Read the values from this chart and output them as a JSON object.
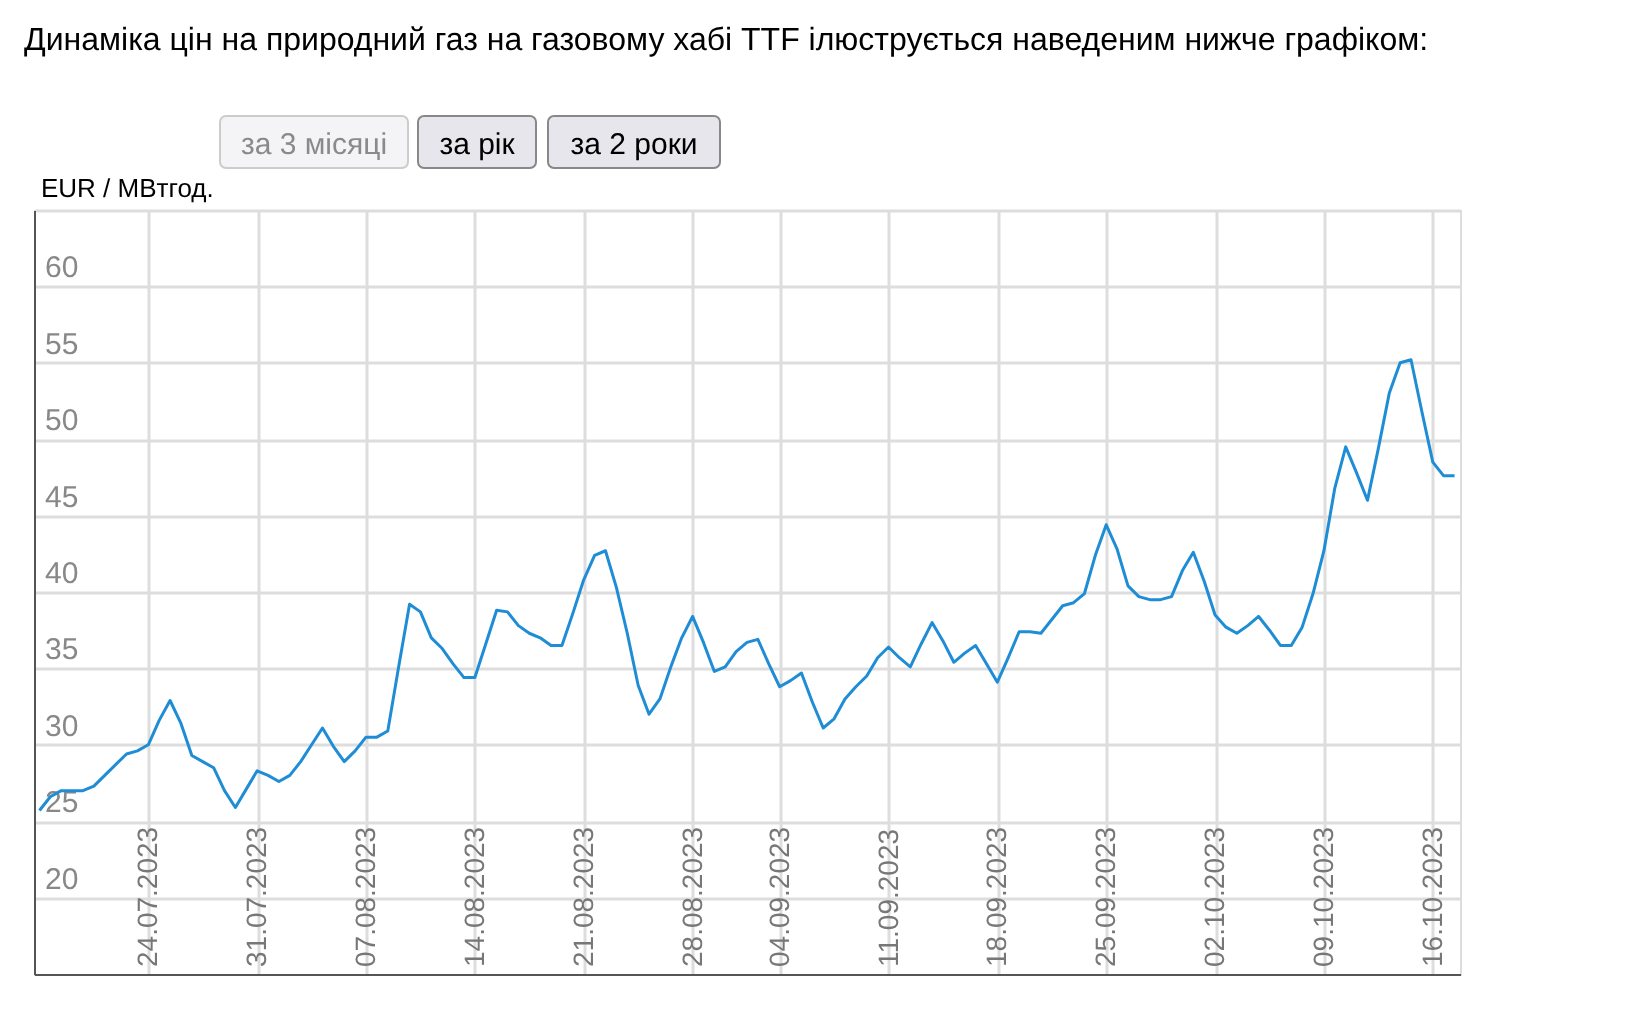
{
  "chart_data": {
    "type": "line",
    "title": "Динаміка цін на природний газ на газовому хабі TTF ілюструється наведеним нижче графіком:",
    "annotations": [
      "за 3 місяці",
      "за рік",
      "за 2 роки"
    ],
    "ylabel": "EUR / MBтгод.",
    "categories": [
      null,
      null,
      null,
      null,
      null,
      null,
      null,
      null,
      null,
      null,
      "24.07.2023",
      null,
      null,
      null,
      null,
      null,
      null,
      null,
      null,
      null,
      "31.07.2023",
      null,
      null,
      null,
      null,
      null,
      null,
      null,
      null,
      null,
      "07.08.2023",
      null,
      null,
      null,
      null,
      null,
      null,
      null,
      null,
      null,
      "14.08.2023",
      null,
      null,
      null,
      null,
      null,
      null,
      null,
      null,
      null,
      "21.08.2023",
      null,
      null,
      null,
      null,
      null,
      null,
      null,
      null,
      null,
      "28.08.2023",
      null,
      null,
      null,
      null,
      null,
      null,
      null,
      "04.09.2023",
      null,
      null,
      null,
      null,
      null,
      null,
      null,
      null,
      null,
      "11.09.2023",
      null,
      null,
      null,
      null,
      null,
      null,
      null,
      null,
      null,
      "18.09.2023",
      null,
      null,
      null,
      null,
      null,
      null,
      null,
      null,
      null,
      "25.09.2023",
      null,
      null,
      null,
      null,
      null,
      null,
      null,
      null,
      null,
      "02.10.2023",
      null,
      null,
      null,
      null,
      null,
      null,
      null,
      null,
      null,
      "09.10.2023",
      null,
      null,
      null,
      null,
      null,
      null,
      null,
      null,
      null,
      "16.10.2023",
      null,
      null
    ],
    "series": [
      {
        "color": "#1f8dd6",
        "values": [
          25.7,
          26.6,
          27.0,
          27.0,
          27.0,
          27.3,
          28.0,
          28.7,
          29.4,
          29.6,
          30.0,
          31.6,
          32.9,
          31.4,
          29.3,
          28.9,
          28.5,
          27.0,
          25.9,
          27.1,
          28.3,
          28.0,
          27.6,
          28.0,
          28.9,
          30.0,
          31.1,
          29.9,
          28.9,
          29.6,
          30.5,
          30.5,
          30.9,
          35.1,
          39.2,
          38.7,
          37.0,
          36.3,
          35.3,
          34.4,
          34.4,
          36.6,
          38.8,
          38.7,
          37.8,
          37.3,
          37.0,
          36.5,
          36.5,
          38.6,
          40.8,
          42.4,
          42.7,
          40.3,
          37.3,
          33.9,
          32.0,
          33.0,
          35.1,
          37.0,
          38.4,
          36.7,
          34.8,
          35.1,
          36.1,
          36.7,
          36.9,
          35.3,
          33.8,
          34.2,
          34.7,
          32.8,
          31.1,
          31.7,
          33.0,
          33.8,
          34.5,
          35.7,
          36.4,
          35.7,
          35.1,
          36.6,
          38.0,
          36.8,
          35.4,
          36.0,
          36.5,
          35.3,
          34.1,
          35.7,
          37.4,
          37.4,
          37.3,
          38.2,
          39.1,
          39.3,
          39.9,
          42.4,
          44.4,
          42.8,
          40.4,
          39.7,
          39.5,
          39.5,
          39.7,
          41.4,
          42.6,
          40.7,
          38.5,
          37.7,
          37.3,
          37.8,
          38.4,
          37.5,
          36.5,
          36.5,
          37.7,
          39.9,
          42.7,
          46.8,
          49.5,
          47.8,
          46.0,
          49.4,
          53.0,
          55.0,
          55.2,
          51.8,
          48.5,
          47.6,
          47.6
        ]
      }
    ],
    "ylim": [
      15,
      65
    ],
    "yticks": [
      20,
      25,
      30,
      35,
      40,
      45,
      50,
      55,
      60,
      {
        "value": 65,
        "label": null
      }
    ],
    "grid": true
  }
}
